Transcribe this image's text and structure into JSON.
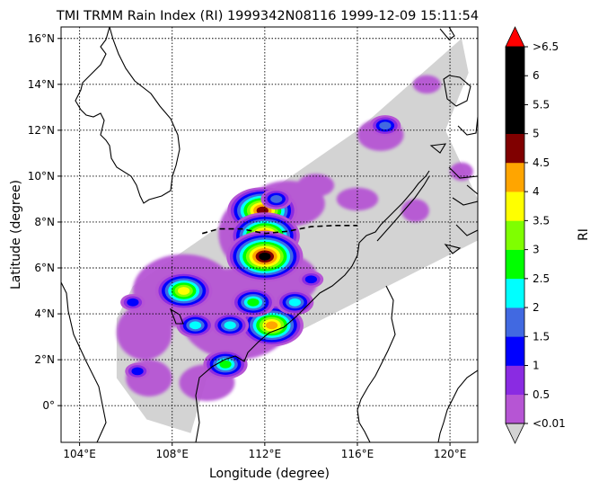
{
  "chart_data": {
    "type": "heatmap",
    "title": "TMI TRMM Rain Index (RI) 1999342N08116 1999-12-09 15:11:54",
    "xlabel": "Longitude (degree)",
    "ylabel": "Latitude (degree)",
    "xlim": [
      103.2,
      121.2
    ],
    "ylim": [
      -1.6,
      16.5
    ],
    "xticks": [
      "104°E",
      "108°E",
      "112°E",
      "116°E",
      "120°E"
    ],
    "xtick_values": [
      104,
      108,
      112,
      116,
      120
    ],
    "yticks": [
      "0°",
      "2°N",
      "4°N",
      "6°N",
      "8°N",
      "10°N",
      "12°N",
      "14°N",
      "16°N"
    ],
    "ytick_values": [
      0,
      2,
      4,
      6,
      8,
      10,
      12,
      14,
      16
    ],
    "grid": true,
    "colorbar": {
      "label": "RI",
      "tick_labels": [
        "<0.01",
        "0.5",
        "1",
        "1.5",
        "2",
        "2.5",
        "3",
        "3.5",
        "4",
        "4.5",
        "5",
        "5.5",
        "6",
        ">6.5"
      ],
      "colors": [
        "#b655d4",
        "#8a2be2",
        "#0000ff",
        "#4169e1",
        "#00ffff",
        "#00ff00",
        "#7fff00",
        "#ffff00",
        "#ffa500",
        "#800000",
        "#000000",
        "#000000",
        "#000000"
      ],
      "over_color": "#ff0000",
      "under_color": "#d3d3d3"
    },
    "swath_color": "#d3d3d3",
    "track": [
      [
        109.3,
        7.5
      ],
      [
        110.0,
        7.7
      ],
      [
        111.0,
        7.7
      ],
      [
        112.0,
        7.5
      ],
      [
        113.0,
        7.6
      ],
      [
        114.0,
        7.8
      ],
      [
        115.0,
        7.85
      ],
      [
        116.0,
        7.85
      ]
    ],
    "rain_cells": [
      {
        "lon": 111.9,
        "lat": 8.5,
        "ri": 4.5
      },
      {
        "lon": 112.0,
        "lat": 7.4,
        "ri": 4.5
      },
      {
        "lon": 112.0,
        "lat": 6.5,
        "ri": 5.0
      },
      {
        "lon": 112.3,
        "lat": 3.5,
        "ri": 4.0
      },
      {
        "lon": 108.5,
        "lat": 5.0,
        "ri": 3.5
      },
      {
        "lon": 109.0,
        "lat": 3.5,
        "ri": 2.0
      },
      {
        "lon": 110.5,
        "lat": 3.5,
        "ri": 2.0
      },
      {
        "lon": 111.5,
        "lat": 4.5,
        "ri": 2.5
      },
      {
        "lon": 113.3,
        "lat": 4.5,
        "ri": 2.0
      },
      {
        "lon": 112.5,
        "lat": 9.0,
        "ri": 1.5
      },
      {
        "lon": 117.2,
        "lat": 12.2,
        "ri": 1.5
      },
      {
        "lon": 114.0,
        "lat": 5.5,
        "ri": 1.0
      },
      {
        "lon": 106.3,
        "lat": 4.5,
        "ri": 1.0
      },
      {
        "lon": 106.5,
        "lat": 1.5,
        "ri": 1.0
      },
      {
        "lon": 110.3,
        "lat": 1.8,
        "ri": 2.5
      }
    ],
    "rain_areas": [
      {
        "lon": 108.5,
        "lat": 5.0,
        "rx": 2.2,
        "ry": 1.6
      },
      {
        "lon": 110.8,
        "lat": 4.0,
        "rx": 2.5,
        "ry": 2.0
      },
      {
        "lon": 111.5,
        "lat": 7.5,
        "rx": 1.5,
        "ry": 1.6
      },
      {
        "lon": 113.0,
        "lat": 8.8,
        "rx": 1.6,
        "ry": 1.0
      },
      {
        "lon": 106.8,
        "lat": 3.2,
        "rx": 1.2,
        "ry": 1.2
      },
      {
        "lon": 112.5,
        "lat": 5.5,
        "rx": 1.8,
        "ry": 1.2
      },
      {
        "lon": 117.0,
        "lat": 11.8,
        "rx": 1.0,
        "ry": 0.7
      },
      {
        "lon": 114.2,
        "lat": 9.6,
        "rx": 0.8,
        "ry": 0.5
      },
      {
        "lon": 118.5,
        "lat": 8.5,
        "rx": 0.6,
        "ry": 0.5
      },
      {
        "lon": 107.0,
        "lat": 1.2,
        "rx": 1.0,
        "ry": 0.8
      },
      {
        "lon": 109.5,
        "lat": 1.0,
        "rx": 1.2,
        "ry": 0.8
      },
      {
        "lon": 119.0,
        "lat": 14.0,
        "rx": 0.6,
        "ry": 0.4
      },
      {
        "lon": 120.5,
        "lat": 10.2,
        "rx": 0.5,
        "ry": 0.4
      },
      {
        "lon": 116.0,
        "lat": 9.0,
        "rx": 0.9,
        "ry": 0.5
      }
    ]
  }
}
